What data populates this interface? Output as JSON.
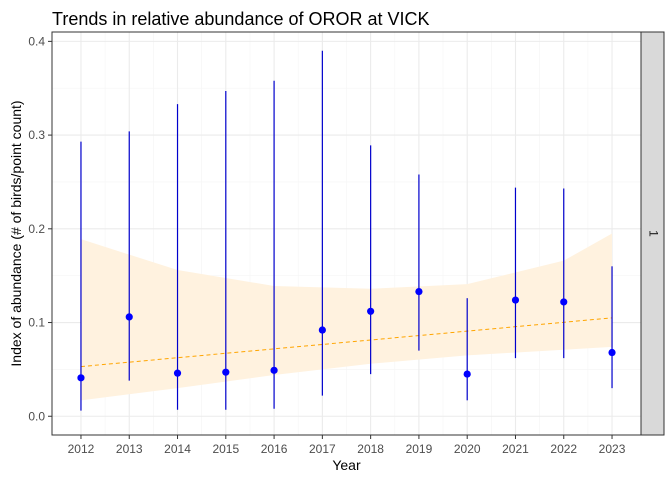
{
  "chart_data": {
    "type": "scatter",
    "title": "Trends in relative abundance of OROR at VICK",
    "xlabel": "Year",
    "ylabel": "Index of abundance (# of birds/point count)",
    "facet_label": "1",
    "xlim": [
      2011.4,
      2023.6
    ],
    "ylim": [
      -0.02,
      0.41
    ],
    "x_ticks": [
      2012,
      2013,
      2014,
      2015,
      2016,
      2017,
      2018,
      2019,
      2020,
      2021,
      2022,
      2023
    ],
    "y_ticks": [
      0.0,
      0.1,
      0.2,
      0.3,
      0.4
    ],
    "y_tick_labels": [
      "0.0",
      "0.1",
      "0.2",
      "0.3",
      "0.4"
    ],
    "grid": true,
    "colors": {
      "points": "#0000ff",
      "error_bars": "#0000cd",
      "trend_line": "#ffa500",
      "confidence_band": "#fff2df",
      "strip_background": "#d9d9d9",
      "grid_major": "#ebebeb",
      "grid_minor": "#f5f5f5"
    },
    "series": [
      {
        "kind": "points_with_error_bars",
        "x": [
          2012,
          2013,
          2014,
          2015,
          2016,
          2017,
          2018,
          2019,
          2020,
          2021,
          2022,
          2023
        ],
        "y": [
          0.041,
          0.106,
          0.046,
          0.047,
          0.049,
          0.092,
          0.112,
          0.133,
          0.045,
          0.124,
          0.122,
          0.068
        ],
        "lower": [
          0.006,
          0.038,
          0.007,
          0.007,
          0.008,
          0.022,
          0.045,
          0.07,
          0.017,
          0.062,
          0.062,
          0.03
        ],
        "upper": [
          0.293,
          0.304,
          0.333,
          0.347,
          0.358,
          0.39,
          0.289,
          0.258,
          0.126,
          0.244,
          0.243,
          0.16
        ]
      },
      {
        "kind": "trend_line",
        "x": [
          2012,
          2023
        ],
        "y": [
          0.053,
          0.105
        ],
        "band_x": [
          2012,
          2014,
          2016,
          2018,
          2020,
          2022,
          2023
        ],
        "band_lower": [
          0.017,
          0.03,
          0.044,
          0.056,
          0.065,
          0.071,
          0.074
        ],
        "band_upper": [
          0.189,
          0.156,
          0.139,
          0.136,
          0.141,
          0.166,
          0.195
        ]
      }
    ]
  }
}
